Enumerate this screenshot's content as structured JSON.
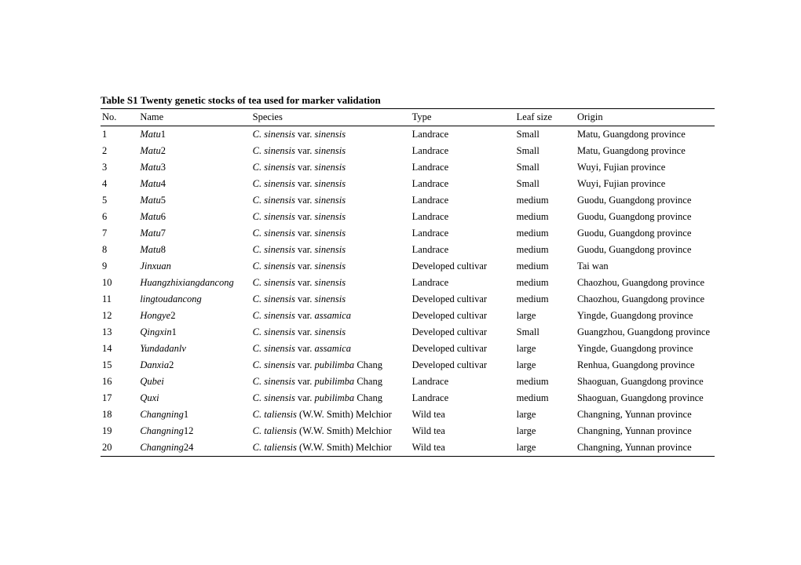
{
  "caption": "Table S1 Twenty genetic stocks of tea used for marker validation",
  "headers": {
    "no": "No.",
    "name": "Name",
    "species": "Species",
    "type": "Type",
    "leaf": "Leaf size",
    "origin": "Origin"
  },
  "sp": {
    "cs_prefix": "C. sinensis",
    "var": " var. ",
    "sinensis": "sinensis",
    "assamica": "assamica",
    "pubilimba": "pubilimba",
    "chang_suffix": " Chang",
    "taliensis": "C. taliensis",
    "tal_suffix": " (W.W. Smith) Melchior"
  },
  "rows": [
    {
      "no": "1",
      "name": "Matu",
      "nsuf": "1",
      "sp": "sin",
      "type": "Landrace",
      "leaf": "Small",
      "origin": "Matu, Guangdong province"
    },
    {
      "no": "2",
      "name": "Matu",
      "nsuf": "2",
      "sp": "sin",
      "type": "Landrace",
      "leaf": "Small",
      "origin": "Matu, Guangdong province"
    },
    {
      "no": "3",
      "name": "Matu",
      "nsuf": "3",
      "sp": "sin",
      "type": "Landrace",
      "leaf": "Small",
      "origin": "Wuyi, Fujian province"
    },
    {
      "no": "4",
      "name": "Matu",
      "nsuf": "4",
      "sp": "sin",
      "type": "Landrace",
      "leaf": "Small",
      "origin": "Wuyi, Fujian province"
    },
    {
      "no": "5",
      "name": "Matu",
      "nsuf": "5",
      "sp": "sin",
      "type": "Landrace",
      "leaf": "medium",
      "origin": "Guodu, Guangdong province"
    },
    {
      "no": "6",
      "name": "Matu",
      "nsuf": "6",
      "sp": "sin",
      "type": "Landrace",
      "leaf": "medium",
      "origin": "Guodu, Guangdong province"
    },
    {
      "no": "7",
      "name": "Matu",
      "nsuf": "7",
      "sp": "sin",
      "type": "Landrace",
      "leaf": "medium",
      "origin": "Guodu, Guangdong province"
    },
    {
      "no": "8",
      "name": "Matu",
      "nsuf": "8",
      "sp": "sin",
      "type": "Landrace",
      "leaf": "medium",
      "origin": "Guodu, Guangdong province"
    },
    {
      "no": "9",
      "name": "Jinxuan",
      "nsuf": "",
      "sp": "sin",
      "type": "Developed cultivar",
      "leaf": "medium",
      "origin": "Tai wan"
    },
    {
      "no": "10",
      "name": "Huangzhixiangdancong",
      "nsuf": "",
      "sp": "sin",
      "type": "Landrace",
      "leaf": "medium",
      "origin": "Chaozhou, Guangdong province"
    },
    {
      "no": "11",
      "name": "lingtoudancong",
      "nsuf": "",
      "sp": "sin",
      "type": "Developed cultivar",
      "leaf": "medium",
      "origin": "Chaozhou, Guangdong province"
    },
    {
      "no": "12",
      "name": "Hongye",
      "nsuf": "2",
      "sp": "ass",
      "type": "Developed cultivar",
      "leaf": "large",
      "origin": "Yingde, Guangdong province"
    },
    {
      "no": "13",
      "name": "Qingxin",
      "nsuf": "1",
      "sp": "sin",
      "type": "Developed cultivar",
      "leaf": "Small",
      "origin": "Guangzhou, Guangdong province"
    },
    {
      "no": "14",
      "name": "Yundadanlv",
      "nsuf": "",
      "sp": "ass",
      "type": "Developed cultivar",
      "leaf": "large",
      "origin": "Yingde, Guangdong province"
    },
    {
      "no": "15",
      "name": "Danxia",
      "nsuf": "2",
      "sp": "pub",
      "type": "Developed cultivar",
      "leaf": "large",
      "origin": "Renhua, Guangdong province"
    },
    {
      "no": "16",
      "name": "Qubei",
      "nsuf": "",
      "sp": "pub",
      "type": "Landrace",
      "leaf": "medium",
      "origin": "Shaoguan, Guangdong province"
    },
    {
      "no": "17",
      "name": "Quxi",
      "nsuf": "",
      "sp": "pub",
      "type": "Landrace",
      "leaf": "medium",
      "origin": "Shaoguan, Guangdong province"
    },
    {
      "no": "18",
      "name": "Changning",
      "nsuf": "1",
      "sp": "tal",
      "type": "Wild tea",
      "leaf": "large",
      "origin": "Changning, Yunnan province"
    },
    {
      "no": "19",
      "name": "Changning",
      "nsuf": "12",
      "sp": "tal",
      "type": "Wild tea",
      "leaf": "large",
      "origin": "Changning, Yunnan province"
    },
    {
      "no": "20",
      "name": "Changning",
      "nsuf": "24",
      "sp": "tal",
      "type": "Wild tea",
      "leaf": "large",
      "origin": "Changning, Yunnan province"
    }
  ]
}
